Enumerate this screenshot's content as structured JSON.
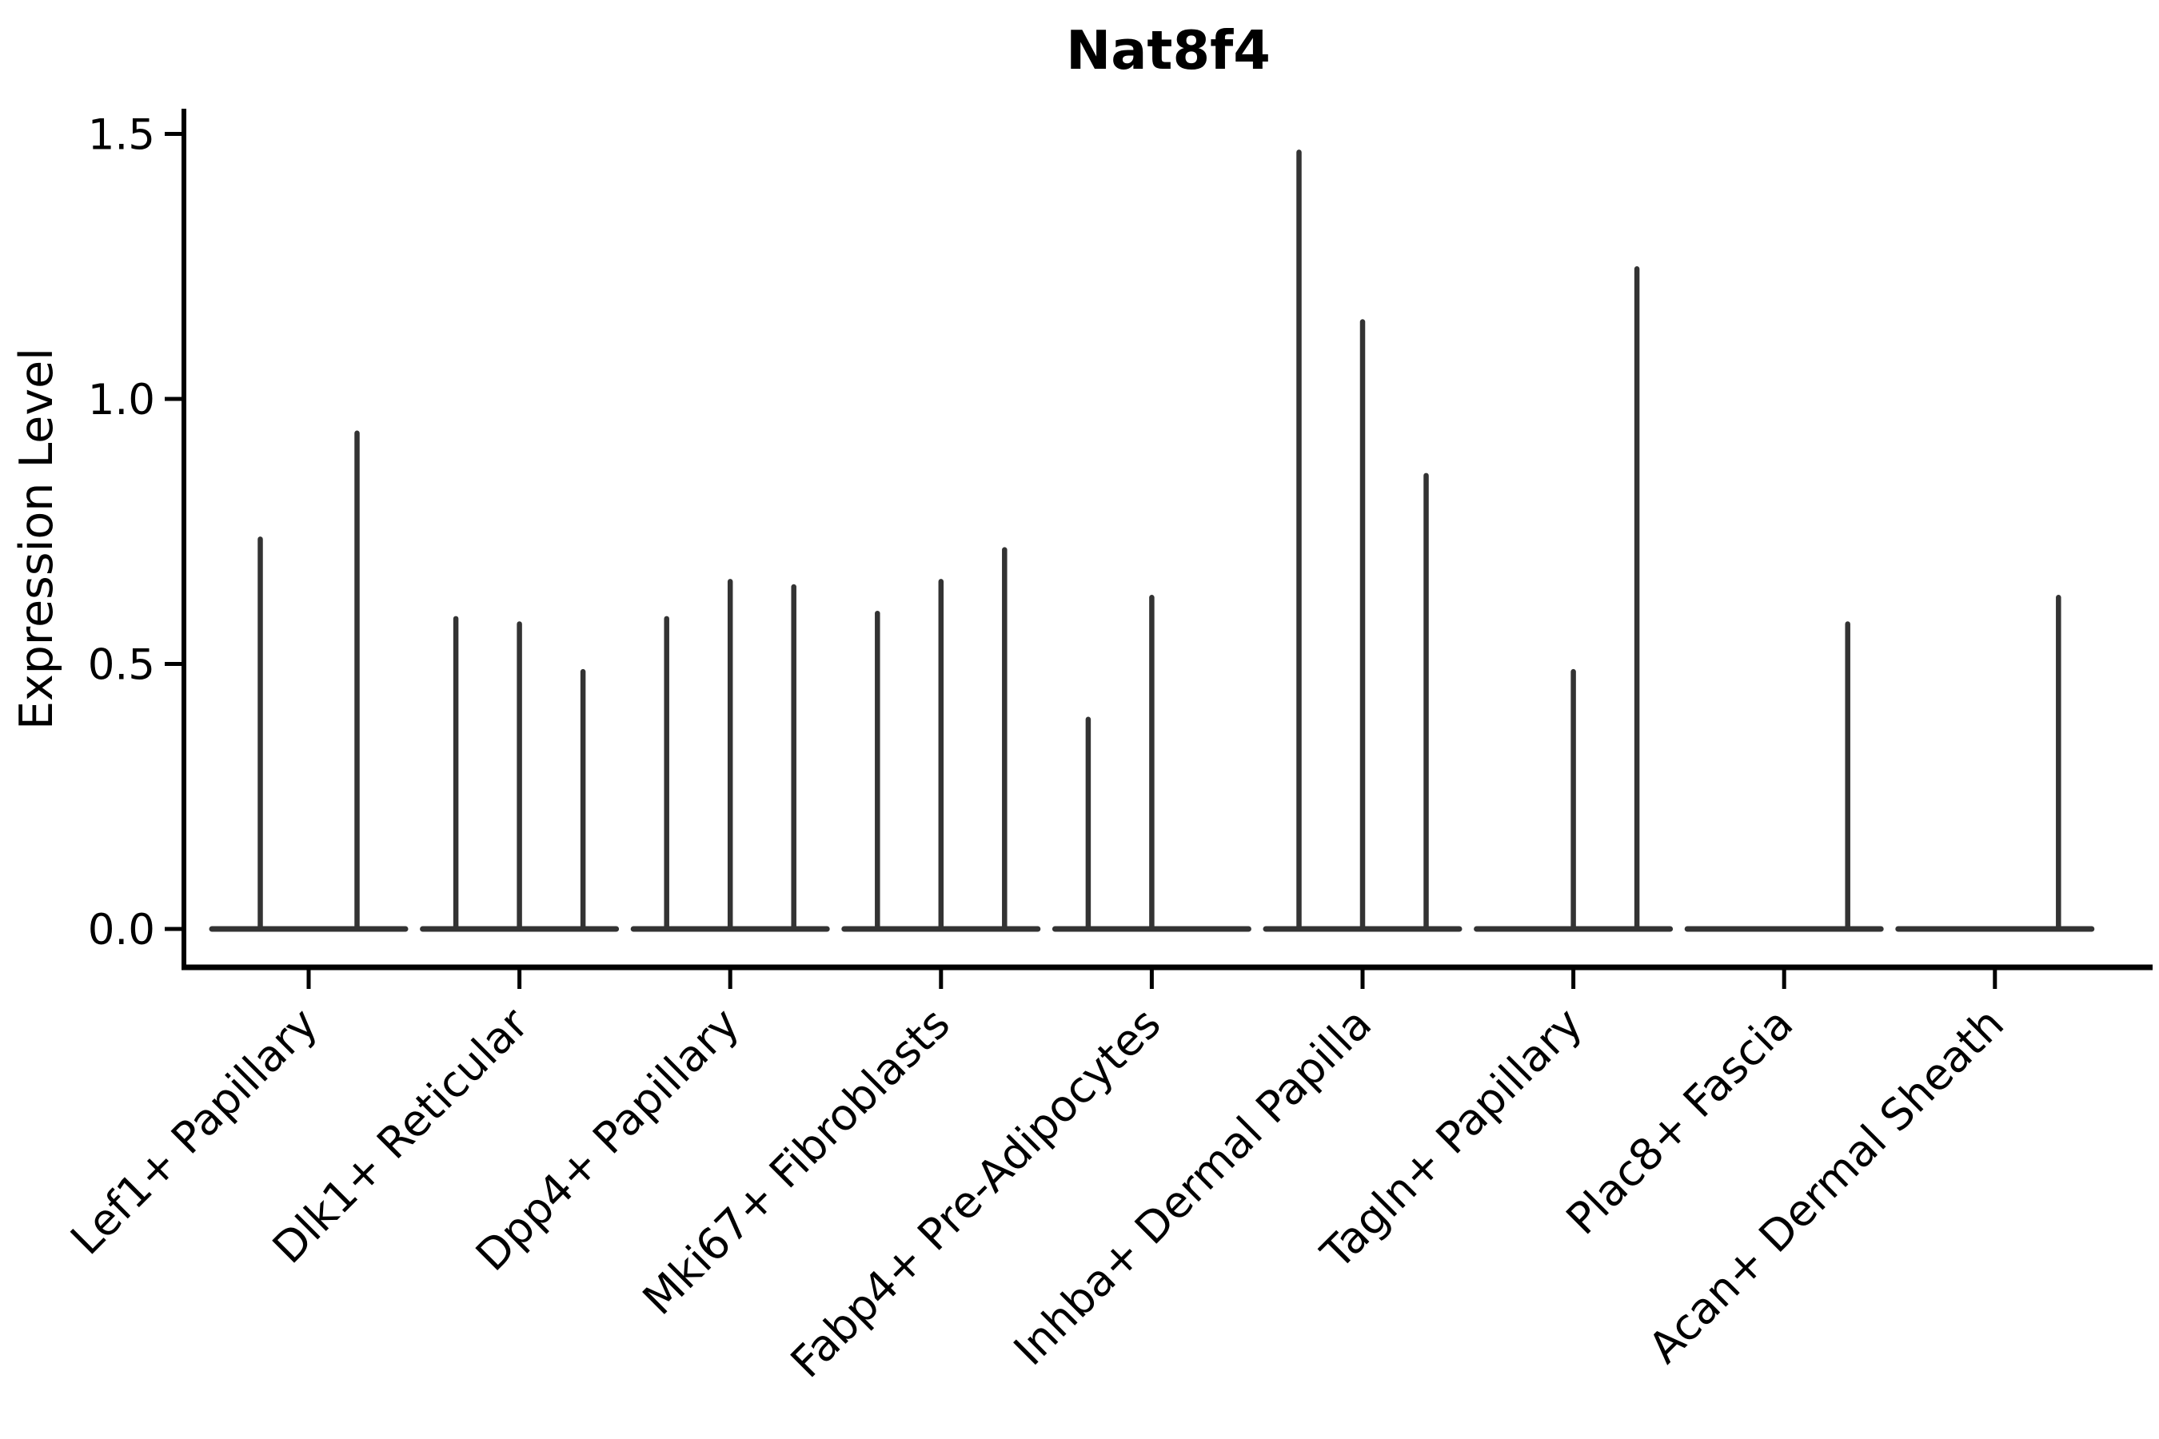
{
  "chart_data": {
    "type": "violin",
    "title": "Nat8f4",
    "ylabel": "Expression Level",
    "xlabel": "",
    "ylim": [
      0,
      1.5
    ],
    "yticks": [
      {
        "value": 0.0,
        "label": "0.0"
      },
      {
        "value": 0.5,
        "label": "0.5"
      },
      {
        "value": 1.0,
        "label": "1.0"
      },
      {
        "value": 1.5,
        "label": "1.5"
      }
    ],
    "grid": false,
    "legend": "none",
    "x_tick_rotation": 45,
    "categories": [
      "Lef1+ Papillary",
      "Dlk1+ Reticular",
      "Dpp4+ Papillary",
      "Mki67+ Fibroblasts",
      "Fabp4+ Pre-Adipocytes",
      "Inhba+ Dermal Papilla",
      "Tagln+ Papillary",
      "Plac8+ Fascia",
      "Acan+ Dermal Sheath"
    ],
    "groups": [
      {
        "label": "Lef1+ Papillary",
        "violin_maxima": [
          0.74,
          0.94
        ]
      },
      {
        "label": "Dlk1+ Reticular",
        "violin_maxima": [
          0.59,
          0.58,
          0.49
        ]
      },
      {
        "label": "Dpp4+ Papillary",
        "violin_maxima": [
          0.59,
          0.66,
          0.65
        ]
      },
      {
        "label": "Mki67+ Fibroblasts",
        "violin_maxima": [
          0.6,
          0.66,
          0.72
        ]
      },
      {
        "label": "Fabp4+ Pre-Adipocytes",
        "violin_maxima": [
          0.4,
          0.63,
          null
        ]
      },
      {
        "label": "Inhba+ Dermal Papilla",
        "violin_maxima": [
          1.47,
          1.15,
          0.86
        ]
      },
      {
        "label": "Tagln+ Papillary",
        "violin_maxima": [
          null,
          0.49,
          1.25
        ]
      },
      {
        "label": "Plac8+ Fascia",
        "violin_maxima": [
          null,
          null,
          0.58
        ]
      },
      {
        "label": "Acan+ Dermal Sheath",
        "violin_maxima": [
          null,
          null,
          0.63
        ]
      }
    ],
    "note": "Each violin is a density spike: wide flat base at expression 0 with a thin needle rising to the max expression value; null = violin with no visible needle."
  },
  "colors": {
    "violin": "#333333",
    "axis": "#000000",
    "text": "#000000",
    "background": "#ffffff"
  }
}
